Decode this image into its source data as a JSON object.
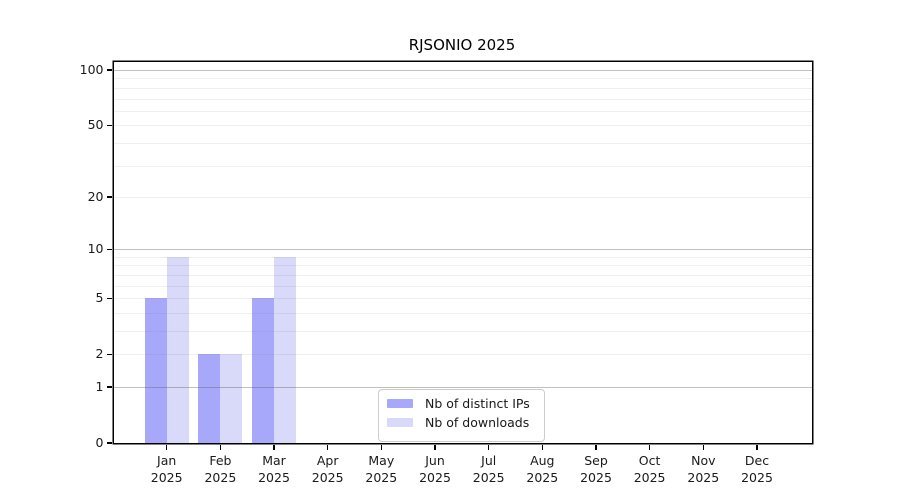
{
  "title": "RJSONIO 2025",
  "chart_data": {
    "type": "bar",
    "title": "RJSONIO 2025",
    "x": [
      "Jan",
      "Feb",
      "Mar",
      "Apr",
      "May",
      "Jun",
      "Jul",
      "Aug",
      "Sep",
      "Oct",
      "Nov",
      "Dec"
    ],
    "year_label": "2025",
    "series": [
      {
        "name": "Nb of distinct IPs",
        "color": "#a8a8fa",
        "values": [
          5,
          2,
          5,
          0,
          0,
          0,
          0,
          0,
          0,
          0,
          0,
          0
        ]
      },
      {
        "name": "Nb of downloads",
        "color": "#d9d9fa",
        "values": [
          9,
          2,
          9,
          0,
          0,
          0,
          0,
          0,
          0,
          0,
          0,
          0
        ]
      }
    ],
    "y_axis": {
      "scale": "log1p",
      "tick_values": [
        0,
        1,
        2,
        5,
        10,
        20,
        50,
        100
      ],
      "tick_labels": [
        "0",
        "1",
        "2",
        "5",
        "10",
        "20",
        "50",
        "100"
      ],
      "major_gridlines": [
        1,
        10,
        100
      ],
      "minor_gridlines": [
        2,
        3,
        4,
        5,
        6,
        7,
        8,
        9,
        20,
        30,
        40,
        50,
        60,
        70,
        80,
        90
      ],
      "ylim": [
        0,
        110.5
      ],
      "grid": true
    },
    "legend": {
      "position": "inside-bottom-center",
      "items": [
        "Nb of distinct IPs",
        "Nb of downloads"
      ]
    },
    "xlabel": "",
    "ylabel": ""
  },
  "colors": {
    "background": "#ffffff",
    "bar_distinct_ips": "#a8a8fa",
    "bar_downloads": "#d9d9fa",
    "grid_major": "#c9c9c9",
    "grid_minor": "#ededed",
    "spine": "#000000",
    "text": "#1a1a1a",
    "legend_border": "#cccccc"
  }
}
